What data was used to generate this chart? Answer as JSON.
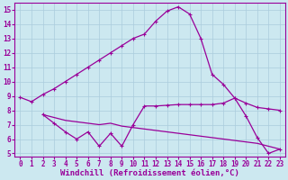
{
  "background_color": "#cce8f0",
  "line_color": "#990099",
  "grid_color": "#aaccdd",
  "xlabel": "Windchill (Refroidissement éolien,°C)",
  "xlabel_fontsize": 6.5,
  "tick_fontsize": 5.5,
  "xlim": [
    -0.5,
    23.5
  ],
  "ylim": [
    4.8,
    15.5
  ],
  "yticks": [
    5,
    6,
    7,
    8,
    9,
    10,
    11,
    12,
    13,
    14,
    15
  ],
  "xticks": [
    0,
    1,
    2,
    3,
    4,
    5,
    6,
    7,
    8,
    9,
    10,
    11,
    12,
    13,
    14,
    15,
    16,
    17,
    18,
    19,
    20,
    21,
    22,
    23
  ],
  "line1_x": [
    0,
    1,
    2,
    3,
    4,
    5,
    6,
    7,
    8,
    9,
    10,
    11,
    12,
    13,
    14,
    15,
    16,
    17,
    18,
    19,
    20,
    21,
    22,
    23
  ],
  "line1_y": [
    8.9,
    8.6,
    9.1,
    9.5,
    10.0,
    10.5,
    11.0,
    11.5,
    12.0,
    12.5,
    13.0,
    13.3,
    14.2,
    14.9,
    15.2,
    14.7,
    13.0,
    10.5,
    9.8,
    8.85,
    8.5,
    8.2,
    8.1,
    8.0
  ],
  "line2_x": [
    2,
    3,
    4,
    5,
    6,
    7,
    8,
    9,
    10,
    11,
    12,
    13,
    14,
    15,
    16,
    17,
    18,
    19,
    20,
    21,
    22,
    23
  ],
  "line2_y": [
    7.7,
    7.1,
    6.5,
    6.0,
    6.5,
    5.5,
    6.4,
    5.5,
    7.0,
    8.3,
    8.3,
    8.35,
    8.4,
    8.4,
    8.4,
    8.4,
    8.5,
    8.85,
    7.6,
    6.1,
    5.0,
    5.3
  ],
  "line3_x": [
    2,
    3,
    4,
    5,
    6,
    7,
    8,
    9,
    10,
    11,
    12,
    13,
    14,
    15,
    16,
    17,
    18,
    19,
    20,
    21,
    22,
    23
  ],
  "line3_y": [
    7.7,
    7.5,
    7.3,
    7.2,
    7.1,
    7.0,
    7.1,
    6.9,
    6.8,
    6.7,
    6.6,
    6.5,
    6.4,
    6.3,
    6.2,
    6.1,
    6.0,
    5.9,
    5.8,
    5.7,
    5.5,
    5.3
  ]
}
